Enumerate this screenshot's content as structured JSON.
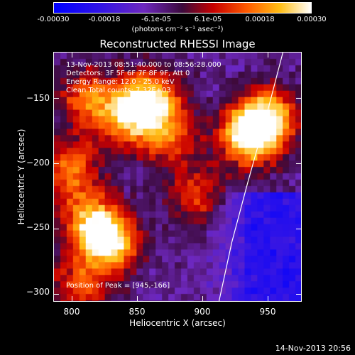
{
  "colorbar": {
    "tick_labels": [
      "-0.00030",
      "-0.00018",
      "-6.1e-05",
      "6.1e-05",
      "0.00018",
      "0.00030"
    ],
    "tick_values": [
      -0.0003,
      -0.00018,
      -6.1e-05,
      6.1e-05,
      0.00018,
      0.0003
    ],
    "range": [
      -0.0003,
      0.0003
    ],
    "units": "(photons cm⁻² s⁻¹ asec⁻²)"
  },
  "chart_data": {
    "type": "heatmap",
    "title": "Reconstructed RHESSI Image",
    "xlabel": "Heliocentric X (arcsec)",
    "ylabel": "Heliocentric Y (arcsec)",
    "xlim": [
      786,
      976
    ],
    "ylim": [
      -306,
      -115
    ],
    "x_ticks": [
      800,
      850,
      900,
      950
    ],
    "y_ticks": [
      -150,
      -200,
      -250,
      -300
    ],
    "x_tick_labels": [
      "800",
      "850",
      "900",
      "950"
    ],
    "y_tick_labels": [
      "−150",
      "−200",
      "−250",
      "−300"
    ],
    "annotations": [
      "13-Nov-2013 08:51:40.000 to 08:56:28.000",
      "Detectors: 3F 5F 6F 7F 8F 9F, Att 0",
      "Energy Range: 12.0 - 25.0 keV",
      "Clean     Total counts: 7.32E+03"
    ],
    "peak_text": "Position of Peak = [945,-166]",
    "peak": [
      945,
      -166
    ],
    "sources": [
      {
        "x": 860,
        "y": -152,
        "peak": 1.0
      },
      {
        "x": 840,
        "y": -165,
        "peak": 0.75
      },
      {
        "x": 935,
        "y": -180,
        "peak": 0.95
      },
      {
        "x": 950,
        "y": -166,
        "peak": 1.0
      },
      {
        "x": 830,
        "y": -262,
        "peak": 0.95
      },
      {
        "x": 815,
        "y": -245,
        "peak": 0.8
      },
      {
        "x": 798,
        "y": -205,
        "peak": 0.7
      },
      {
        "x": 810,
        "y": -150,
        "peak": 0.6
      },
      {
        "x": 895,
        "y": -225,
        "peak": 0.5
      },
      {
        "x": 875,
        "y": -180,
        "peak": 0.55
      },
      {
        "x": 805,
        "y": -295,
        "peak": 0.55
      }
    ],
    "limb": [
      [
        961,
        -115
      ],
      [
        948,
        -165
      ],
      [
        934,
        -215
      ],
      [
        922,
        -260
      ],
      [
        912,
        -306
      ]
    ]
  },
  "footer": {
    "date": "14-Nov-2013 20:56"
  }
}
